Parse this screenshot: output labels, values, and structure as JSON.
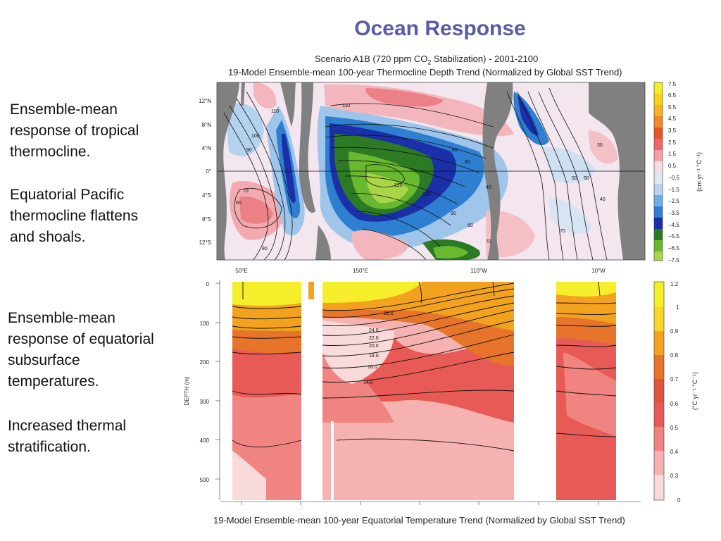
{
  "slide_title": "Ocean Response",
  "left_text": {
    "block1_line1": "Ensemble-mean",
    "block1_line2": "response of tropical",
    "block1_line3": "thermocline.",
    "block2_line1": "Equatorial Pacific",
    "block2_line2": "thermocline flattens",
    "block2_line3": "and shoals.",
    "block3_line1": "Ensemble-mean",
    "block3_line2": "response of equatorial",
    "block3_line3": "subsurface",
    "block3_line4": "temperatures.",
    "block4_line1": "Increased thermal",
    "block4_line2": "stratification."
  },
  "top_plot": {
    "title_line1_pre": "Scenario A1B (720 ppm CO",
    "title_line1_sub": "2",
    "title_line1_post": " Stabilization) - 2001-2100",
    "title_line2": "19-Model Ensemble-mean 100-year Thermocline Depth Trend (Normalized by Global SST Trend)",
    "lat_ticks": [
      "12°N",
      "8°N",
      "4°N",
      "0°",
      "4°S",
      "8°S",
      "12°S"
    ],
    "lon_ticks": [
      "50°E",
      "150°E",
      "110°W",
      "10°W"
    ],
    "colorbar_ticks": [
      "7.5",
      "6.5",
      "5.5",
      "4.5",
      "3.5",
      "2.5",
      "1.5",
      "0.5",
      "−0.5",
      "−1.5",
      "−2.5",
      "−3.5",
      "−4.5",
      "−5.5",
      "−6.5",
      "−7.5"
    ],
    "colorbar_unit": "(cm yr⁻¹ °C⁻¹)",
    "contour_labels": [
      "110",
      "110",
      "120",
      "120",
      "100",
      "90",
      "80",
      "70",
      "60",
      "40",
      "40",
      "70",
      "80",
      "90",
      "60",
      "50",
      "50",
      "40",
      "30",
      "70"
    ],
    "colors": {
      "land": "#808080",
      "deep_blue": "#1a2fa8",
      "mid_blue": "#2e7fd0",
      "light_blue": "#9fc6ea",
      "pale": "#f1e4ee",
      "pink": "#f4b3b8",
      "red": "#ea6a6f",
      "dark_green": "#2d7a24",
      "green": "#68b830",
      "light_green": "#a9d648"
    }
  },
  "bottom_plot": {
    "depth_ticks": [
      "0",
      "100",
      "200",
      "300",
      "400",
      "500"
    ],
    "depth_axis_label": "DEPTH (m)",
    "colorbar_ticks": [
      "1.2",
      "1",
      "0.9",
      "0.8",
      "0.7",
      "0.6",
      "0.5",
      "0.4",
      "0.3",
      "0"
    ],
    "colorbar_unit": "(°C yr⁻¹ °C⁻¹)",
    "isotherm_labels": [
      "26.0",
      "24.0",
      "22.0",
      "20.0",
      "18.0",
      "16.0",
      "14.0"
    ],
    "title": "19-Model Ensemble-mean 100-year Equatorial Temperature Trend (Normalized by Global SST Trend)",
    "colors": {
      "yellow": "#f6ee2a",
      "orange": "#f2a21e",
      "dark_orange": "#e6742a",
      "red": "#e85a55",
      "salmon": "#f08480",
      "pink": "#f6b2b0",
      "pale": "#f9dada"
    }
  }
}
